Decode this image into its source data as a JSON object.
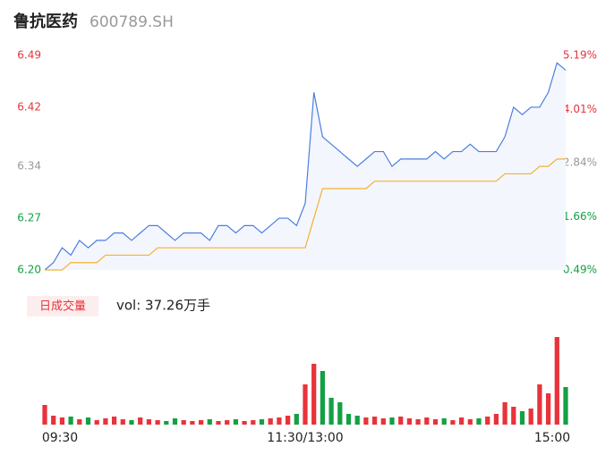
{
  "chart_data": {
    "type": "intraday",
    "title": "鲁抗医药",
    "subtitle": "600789.SH",
    "x": [
      0,
      4,
      8,
      12,
      16,
      20,
      24,
      28,
      32,
      36,
      40,
      44,
      48,
      52,
      56,
      60,
      64,
      68,
      72,
      76,
      80,
      84,
      88,
      92,
      96,
      100,
      104,
      108,
      112,
      116,
      120,
      124,
      128,
      132,
      136,
      140,
      144,
      148,
      152,
      156,
      160,
      164,
      168,
      172,
      176,
      180,
      184,
      188,
      192,
      196,
      200,
      204,
      208,
      212,
      216,
      220,
      224,
      228,
      232,
      236,
      240
    ],
    "xlim": [
      0,
      240
    ],
    "xticks": [
      {
        "value": 0,
        "label": "09:30"
      },
      {
        "value": 120,
        "label": "11:30/13:00"
      },
      {
        "value": 240,
        "label": "15:00"
      }
    ],
    "ylim": [
      6.2,
      6.49
    ],
    "yticks": [
      6.49,
      6.42,
      6.34,
      6.27,
      {
        "value": 6.2,
        "label": "6.20"
      }
    ],
    "y2lim": [
      0.49,
      5.19
    ],
    "y2ticks": [
      {
        "value": 5.19,
        "label": "5.19%"
      },
      {
        "value": 4.01,
        "label": "4.01%"
      },
      {
        "value": 2.84,
        "label": "2.84%"
      },
      {
        "value": 1.66,
        "label": "1.66%"
      },
      {
        "value": 0.49,
        "label": "0.49%"
      }
    ],
    "grid": false,
    "up_color": "#e8333a",
    "down_color": "#14a044",
    "flat_color": "#999999",
    "series": [
      {
        "name": "price",
        "color": "#4a7fe0",
        "values": [
          6.2,
          6.21,
          6.23,
          6.22,
          6.24,
          6.23,
          6.24,
          6.24,
          6.25,
          6.25,
          6.24,
          6.25,
          6.26,
          6.26,
          6.25,
          6.24,
          6.25,
          6.25,
          6.25,
          6.24,
          6.26,
          6.26,
          6.25,
          6.26,
          6.26,
          6.25,
          6.26,
          6.27,
          6.27,
          6.26,
          6.29,
          6.44,
          6.38,
          6.37,
          6.36,
          6.35,
          6.34,
          6.35,
          6.36,
          6.36,
          6.34,
          6.35,
          6.35,
          6.35,
          6.35,
          6.36,
          6.35,
          6.36,
          6.36,
          6.37,
          6.36,
          6.36,
          6.36,
          6.38,
          6.42,
          6.41,
          6.42,
          6.42,
          6.44,
          6.48,
          6.47
        ]
      },
      {
        "name": "average",
        "color": "#f2b230",
        "values": [
          6.2,
          6.2,
          6.2,
          6.21,
          6.21,
          6.21,
          6.21,
          6.22,
          6.22,
          6.22,
          6.22,
          6.22,
          6.22,
          6.23,
          6.23,
          6.23,
          6.23,
          6.23,
          6.23,
          6.23,
          6.23,
          6.23,
          6.23,
          6.23,
          6.23,
          6.23,
          6.23,
          6.23,
          6.23,
          6.23,
          6.23,
          6.27,
          6.31,
          6.31,
          6.31,
          6.31,
          6.31,
          6.31,
          6.32,
          6.32,
          6.32,
          6.32,
          6.32,
          6.32,
          6.32,
          6.32,
          6.32,
          6.32,
          6.32,
          6.32,
          6.32,
          6.32,
          6.32,
          6.33,
          6.33,
          6.33,
          6.33,
          6.34,
          6.34,
          6.35,
          6.35
        ]
      }
    ],
    "volume": {
      "label": "日成交量",
      "text": "vol: 37.26万手",
      "ylim": [
        0,
        100
      ],
      "values": [
        22,
        10,
        8,
        9,
        6,
        8,
        5,
        7,
        9,
        6,
        5,
        8,
        6,
        5,
        4,
        7,
        5,
        4,
        5,
        6,
        4,
        5,
        6,
        4,
        5,
        6,
        7,
        8,
        10,
        12,
        45,
        68,
        60,
        30,
        25,
        12,
        10,
        8,
        9,
        7,
        8,
        9,
        7,
        6,
        8,
        6,
        7,
        5,
        8,
        6,
        7,
        9,
        12,
        25,
        20,
        15,
        18,
        45,
        35,
        98,
        42
      ]
    }
  }
}
